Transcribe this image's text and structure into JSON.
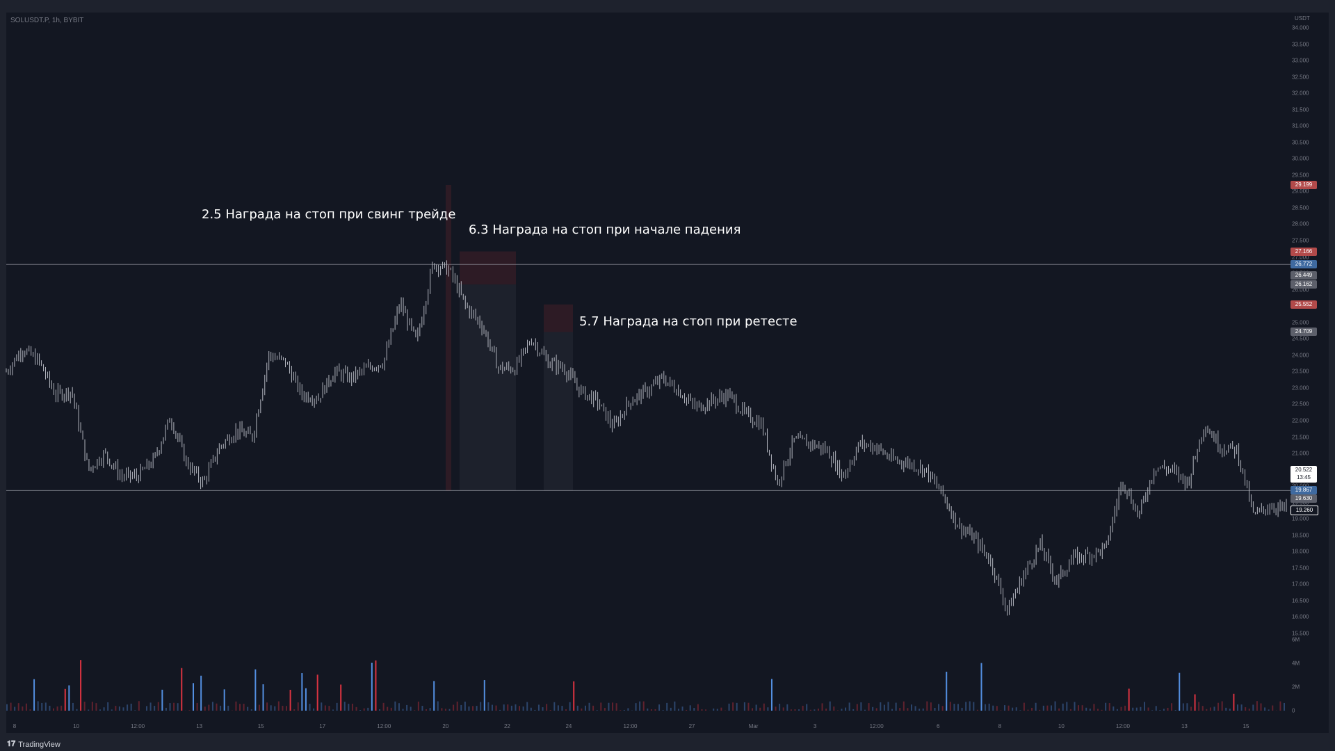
{
  "symbol_label": "SOLUSDT.P, 1h, BYBIT",
  "currency": "USDT",
  "brand": "TradingView",
  "annotations": {
    "swing": "2.5 Награда на стоп при свинг трейде",
    "fall": "6.3 Награда на стоп при начале падения",
    "retest": "5.7 Награда на стоп при ретесте"
  },
  "colors": {
    "background": "#131722",
    "candle": "#b2b5be",
    "volume_up": "#5b9cf6",
    "volume_down": "#f23645",
    "stop_zone": "#f23645",
    "target_zone": "#787b86"
  },
  "price_axis": {
    "ticks": [
      "34.000",
      "33.500",
      "33.000",
      "32.500",
      "32.000",
      "31.500",
      "31.000",
      "30.500",
      "30.000",
      "29.500",
      "29.000",
      "28.500",
      "28.000",
      "27.500",
      "27.000",
      "26.500",
      "26.000",
      "25.500",
      "25.000",
      "24.500",
      "24.000",
      "23.500",
      "23.000",
      "22.500",
      "22.000",
      "21.500",
      "21.000",
      "20.500",
      "20.000",
      "19.500",
      "19.000",
      "18.500",
      "18.000",
      "17.500",
      "17.000",
      "16.500",
      "16.000",
      "15.500"
    ],
    "volume_ticks": [
      "6M",
      "4M",
      "2M",
      "0"
    ]
  },
  "price_tags": [
    {
      "label": "29.199",
      "price": 29.199,
      "color": "#b24a4a"
    },
    {
      "label": "27.166",
      "price": 27.166,
      "color": "#b24a4a"
    },
    {
      "label": "26.772",
      "price": 26.772,
      "color": "#3f6aa0"
    },
    {
      "label": "26.449",
      "price": 26.449,
      "color": "#5d606b"
    },
    {
      "label": "26.162",
      "price": 26.162,
      "color": "#5d606b"
    },
    {
      "label": "25.552",
      "price": 25.552,
      "color": "#b24a4a"
    },
    {
      "label": "24.709",
      "price": 24.709,
      "color": "#5d606b"
    },
    {
      "label": "19.867",
      "price": 19.867,
      "color": "#3f6aa0"
    },
    {
      "label": "19.630",
      "price": 19.63,
      "color": "#5d606b"
    },
    {
      "label": "19.260",
      "price": 19.26,
      "color": "#131722"
    }
  ],
  "current_price": {
    "price": "20.522",
    "countdown": "13:45"
  },
  "time_axis": [
    "8",
    "10",
    "12:00",
    "13",
    "15",
    "17",
    "12:00",
    "20",
    "22",
    "24",
    "12:00",
    "27",
    "Mar",
    "3",
    "12:00",
    "6",
    "8",
    "10",
    "12:00",
    "13",
    "15"
  ],
  "chart_data": {
    "type": "candlestick",
    "symbol": "SOLUSDT.P",
    "interval": "1h",
    "exchange": "BYBIT",
    "ylim": [
      15.5,
      34.0
    ],
    "horizontal_levels": [
      26.772,
      19.867
    ],
    "close_path": [
      {
        "x": 0,
        "y": 23.5
      },
      {
        "x": 1,
        "y": 24.2
      },
      {
        "x": 2,
        "y": 23.8
      },
      {
        "x": 3,
        "y": 22.8
      },
      {
        "x": 4,
        "y": 22.9
      },
      {
        "x": 5,
        "y": 20.5
      },
      {
        "x": 6,
        "y": 21.0
      },
      {
        "x": 7,
        "y": 20.3
      },
      {
        "x": 8,
        "y": 20.3
      },
      {
        "x": 9,
        "y": 20.8
      },
      {
        "x": 10,
        "y": 22.1
      },
      {
        "x": 11,
        "y": 20.7
      },
      {
        "x": 12,
        "y": 20.1
      },
      {
        "x": 13,
        "y": 21.2
      },
      {
        "x": 14,
        "y": 21.7
      },
      {
        "x": 15,
        "y": 21.5
      },
      {
        "x": 16,
        "y": 24.0
      },
      {
        "x": 17,
        "y": 23.8
      },
      {
        "x": 18,
        "y": 22.8
      },
      {
        "x": 19,
        "y": 22.7
      },
      {
        "x": 20,
        "y": 23.5
      },
      {
        "x": 21,
        "y": 23.3
      },
      {
        "x": 22,
        "y": 23.6
      },
      {
        "x": 23,
        "y": 23.8
      },
      {
        "x": 24,
        "y": 25.6
      },
      {
        "x": 25,
        "y": 24.4
      },
      {
        "x": 26,
        "y": 26.8
      },
      {
        "x": 27,
        "y": 26.6
      },
      {
        "x": 28,
        "y": 25.5
      },
      {
        "x": 29,
        "y": 24.9
      },
      {
        "x": 30,
        "y": 23.6
      },
      {
        "x": 31,
        "y": 23.6
      },
      {
        "x": 32,
        "y": 24.5
      },
      {
        "x": 33,
        "y": 23.8
      },
      {
        "x": 34,
        "y": 23.6
      },
      {
        "x": 35,
        "y": 22.9
      },
      {
        "x": 36,
        "y": 22.6
      },
      {
        "x": 37,
        "y": 21.8
      },
      {
        "x": 38,
        "y": 22.6
      },
      {
        "x": 39,
        "y": 22.9
      },
      {
        "x": 40,
        "y": 23.3
      },
      {
        "x": 41,
        "y": 22.9
      },
      {
        "x": 42,
        "y": 22.4
      },
      {
        "x": 43,
        "y": 22.6
      },
      {
        "x": 44,
        "y": 22.8
      },
      {
        "x": 45,
        "y": 22.2
      },
      {
        "x": 46,
        "y": 21.9
      },
      {
        "x": 47,
        "y": 20.1
      },
      {
        "x": 48,
        "y": 21.4
      },
      {
        "x": 49,
        "y": 21.3
      },
      {
        "x": 50,
        "y": 21.1
      },
      {
        "x": 51,
        "y": 20.3
      },
      {
        "x": 52,
        "y": 21.3
      },
      {
        "x": 53,
        "y": 21.2
      },
      {
        "x": 54,
        "y": 20.8
      },
      {
        "x": 55,
        "y": 20.7
      },
      {
        "x": 56,
        "y": 20.5
      },
      {
        "x": 57,
        "y": 19.8
      },
      {
        "x": 58,
        "y": 18.8
      },
      {
        "x": 59,
        "y": 18.4
      },
      {
        "x": 60,
        "y": 17.7
      },
      {
        "x": 61,
        "y": 16.2
      },
      {
        "x": 62,
        "y": 17.3
      },
      {
        "x": 63,
        "y": 18.2
      },
      {
        "x": 64,
        "y": 17.1
      },
      {
        "x": 65,
        "y": 17.8
      },
      {
        "x": 66,
        "y": 17.9
      },
      {
        "x": 67,
        "y": 18.1
      },
      {
        "x": 68,
        "y": 20.2
      },
      {
        "x": 69,
        "y": 19.1
      },
      {
        "x": 70,
        "y": 20.6
      },
      {
        "x": 71,
        "y": 20.5
      },
      {
        "x": 72,
        "y": 20.1
      },
      {
        "x": 73,
        "y": 21.9
      },
      {
        "x": 74,
        "y": 21.2
      },
      {
        "x": 75,
        "y": 21.1
      },
      {
        "x": 76,
        "y": 19.1
      },
      {
        "x": 77,
        "y": 19.4
      },
      {
        "x": 78,
        "y": 19.3
      }
    ]
  }
}
